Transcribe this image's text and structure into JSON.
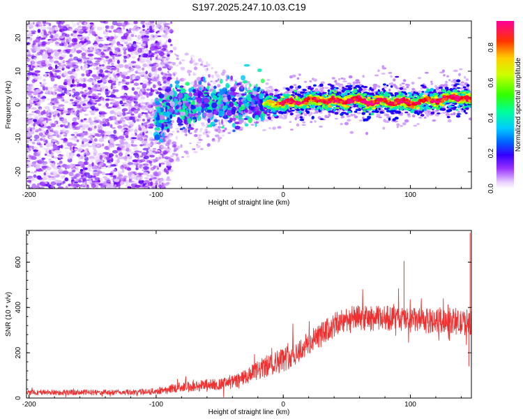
{
  "page_title": "S197.2025.247.10.03.C19",
  "chart_data": [
    {
      "type": "heatmap",
      "title": "S197.2025.247.10.03.C19",
      "xlabel": "Height of straight line (km)",
      "ylabel": "Frequency (Hz)",
      "xlim": [
        -202,
        148
      ],
      "ylim": [
        -25,
        25
      ],
      "xticks": [
        -200,
        -100,
        0,
        100
      ],
      "yticks": [
        -20,
        -10,
        0,
        10,
        20
      ],
      "colorbar": {
        "label": "Normalized spectral amplitude",
        "range": [
          0.0,
          0.95
        ],
        "ticks": [
          0.0,
          0.2,
          0.4,
          0.6,
          0.8
        ],
        "tick_labels": [
          "0.0",
          "0.2",
          "0.4",
          "0.6",
          "0.8"
        ],
        "colormap": [
          "#ffffff",
          "#d9b3ff",
          "#7f00ff",
          "#0000ff",
          "#00ccff",
          "#00ff80",
          "#80ff00",
          "#ffff00",
          "#ff8000",
          "#ff0000",
          "#ff0090"
        ]
      },
      "noise_band": {
        "x_from": -202,
        "x_to": -100,
        "freq_from": -25,
        "freq_to": 25,
        "amplitude": 0.15
      },
      "transition_band": {
        "x_from": -100,
        "x_to": -15,
        "freq_from": -9,
        "freq_to": 9,
        "amplitude": 0.3
      },
      "ridge": {
        "x": [
          -95,
          -85,
          -75,
          -65,
          -55,
          -45,
          -35,
          -25,
          -15,
          0,
          10,
          20,
          30,
          40,
          50,
          60,
          70,
          80,
          90,
          100,
          110,
          120,
          130,
          140,
          148
        ],
        "freq": [
          -3,
          1,
          -2,
          3,
          -1,
          2,
          -1,
          1,
          0,
          0.5,
          0.8,
          1.2,
          1.5,
          1.0,
          1.3,
          1.4,
          0.6,
          1.0,
          0.8,
          0.5,
          1.0,
          1.4,
          2.0,
          2.4,
          1.0
        ],
        "amplitude": [
          0.3,
          0.35,
          0.3,
          0.4,
          0.35,
          0.4,
          0.45,
          0.5,
          0.6,
          0.85,
          0.9,
          0.85,
          0.9,
          0.88,
          0.9,
          0.92,
          0.9,
          0.88,
          0.9,
          0.88,
          0.85,
          0.88,
          0.9,
          0.88,
          0.85
        ]
      }
    },
    {
      "type": "line",
      "xlabel": "Height of straight line (km)",
      "ylabel": "SNR (10 * v/v)",
      "xlim": [
        -202,
        148
      ],
      "ylim": [
        0,
        740
      ],
      "xticks": [
        -200,
        -100,
        0,
        100
      ],
      "yticks": [
        0,
        200,
        400,
        600
      ],
      "series": [
        {
          "name": "SNR",
          "color": "#ee3030",
          "x": [
            -202,
            -180,
            -160,
            -140,
            -120,
            -100,
            -90,
            -80,
            -70,
            -60,
            -50,
            -40,
            -30,
            -20,
            -10,
            0,
            10,
            20,
            30,
            40,
            50,
            60,
            70,
            80,
            90,
            100,
            110,
            120,
            130,
            140,
            148
          ],
          "y": [
            25,
            25,
            25,
            25,
            25,
            30,
            40,
            50,
            50,
            60,
            60,
            70,
            90,
            120,
            150,
            170,
            200,
            240,
            280,
            320,
            350,
            355,
            350,
            355,
            350,
            345,
            340,
            340,
            345,
            330,
            340
          ],
          "spread": [
            12,
            12,
            12,
            12,
            12,
            14,
            18,
            22,
            25,
            25,
            25,
            28,
            35,
            45,
            50,
            55,
            55,
            55,
            55,
            55,
            55,
            55,
            55,
            55,
            55,
            55,
            55,
            55,
            55,
            55,
            60
          ]
        }
      ],
      "spikes": [
        {
          "x": 95,
          "y": 605
        },
        {
          "x": 147,
          "y": 730
        },
        {
          "x": 148,
          "y": 700
        },
        {
          "x": 146,
          "y": 140
        }
      ]
    }
  ]
}
